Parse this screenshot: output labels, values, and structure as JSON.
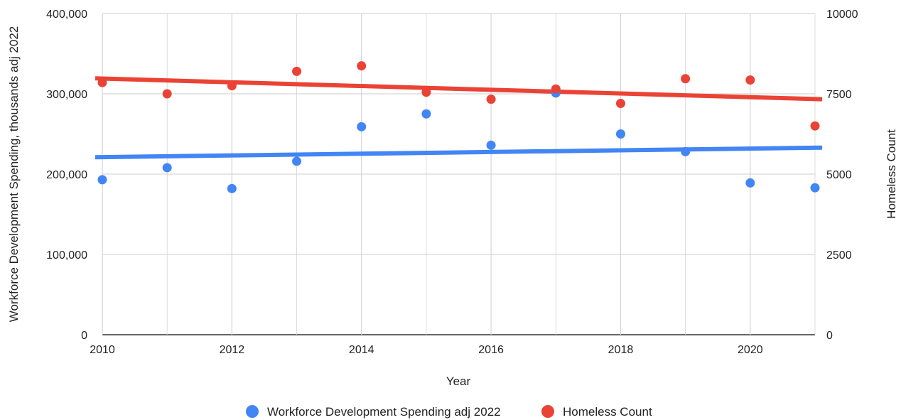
{
  "chart_data": {
    "type": "scatter",
    "xlabel": "Year",
    "ylabel": "Workforce Development Spending, thousands adj 2022",
    "y2label": "Homeless Count",
    "xlim": [
      2010,
      2021
    ],
    "ylim": [
      0,
      400000
    ],
    "y2lim": [
      0,
      10000
    ],
    "x_ticks": [
      "2010",
      "2012",
      "2014",
      "2016",
      "2018",
      "2020"
    ],
    "y_ticks": [
      "0",
      "100,000",
      "200,000",
      "300,000",
      "400,000"
    ],
    "y2_ticks": [
      "0",
      "2500",
      "5000",
      "7500",
      "10000"
    ],
    "grid": true,
    "legend_position": "bottom",
    "series": [
      {
        "name": "Workforce Development Spending adj 2022",
        "axis": "left",
        "color": "#4285f4",
        "x": [
          2010,
          2011,
          2012,
          2013,
          2014,
          2015,
          2016,
          2017,
          2018,
          2019,
          2020,
          2021
        ],
        "values": [
          193000,
          208000,
          182000,
          216000,
          259000,
          275000,
          236000,
          301000,
          250000,
          228000,
          189000,
          183000
        ],
        "trendline": [
          221000,
          233000
        ]
      },
      {
        "name": "Homeless Count",
        "axis": "right",
        "color": "#ea4335",
        "x": [
          2010,
          2011,
          2012,
          2013,
          2014,
          2015,
          2016,
          2017,
          2018,
          2019,
          2020,
          2021
        ],
        "values": [
          7850,
          7500,
          7750,
          8200,
          8370,
          7550,
          7330,
          7650,
          7200,
          7970,
          7930,
          6500
        ],
        "trendline": [
          7980,
          7330
        ]
      }
    ]
  }
}
